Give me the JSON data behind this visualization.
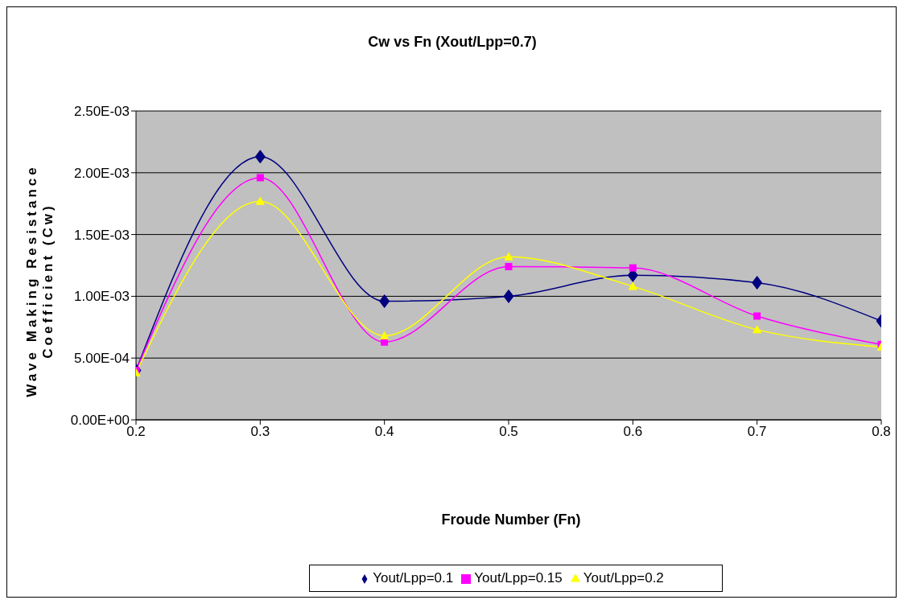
{
  "chart_data": {
    "type": "line",
    "title": "Cw vs Fn (Xout/Lpp=0.7)",
    "xlabel": "Froude Number (Fn)",
    "ylabel": "Wave Making Resistance Coefficient (Cw)",
    "x": [
      0.2,
      0.3,
      0.4,
      0.5,
      0.6,
      0.7,
      0.8
    ],
    "xlim": [
      0.2,
      0.8
    ],
    "xticks": [
      0.2,
      0.3,
      0.4,
      0.5,
      0.6,
      0.7,
      0.8
    ],
    "ylim": [
      0,
      0.0025
    ],
    "yticks": [
      {
        "value": 0,
        "label": "0.00E+00"
      },
      {
        "value": 0.0005,
        "label": "5.00E-04"
      },
      {
        "value": 0.001,
        "label": "1.00E-03"
      },
      {
        "value": 0.0015,
        "label": "1.50E-03"
      },
      {
        "value": 0.002,
        "label": "2.00E-03"
      },
      {
        "value": 0.0025,
        "label": "2.50E-03"
      }
    ],
    "grid": "y",
    "legend": "bottom",
    "series": [
      {
        "name": "Yout/Lpp=0.1",
        "color": "#000080",
        "marker": "diamond",
        "values": [
          0.0004,
          0.00213,
          0.00096,
          0.001,
          0.00117,
          0.00111,
          0.0008
        ]
      },
      {
        "name": "Yout/Lpp=0.15",
        "color": "#ff00ff",
        "marker": "square",
        "values": [
          0.0004,
          0.00196,
          0.00063,
          0.00124,
          0.00123,
          0.00084,
          0.00061
        ]
      },
      {
        "name": "Yout/Lpp=0.2",
        "color": "#ffff00",
        "marker": "triangle",
        "values": [
          0.00038,
          0.00177,
          0.00068,
          0.00132,
          0.00108,
          0.00073,
          0.00059
        ]
      }
    ]
  }
}
